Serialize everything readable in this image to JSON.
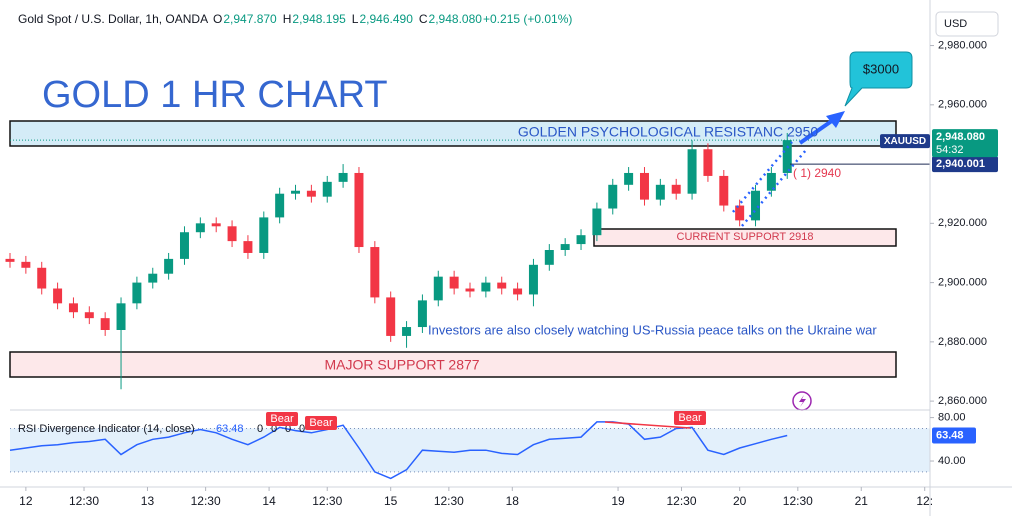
{
  "header": {
    "symbol": "Gold Spot / U.S. Dollar, 1h, OANDA",
    "ohlc": [
      {
        "key": "O",
        "value": "2,947.870"
      },
      {
        "key": "H",
        "value": "2,948.195"
      },
      {
        "key": "L",
        "value": "2,946.490"
      },
      {
        "key": "C",
        "value": "2,948.080"
      }
    ],
    "change": "+0.215 (+0.01%)"
  },
  "chart_data": [
    {
      "type": "candlestick",
      "title": "GOLD 1 HR CHART",
      "x": [
        0,
        3,
        6,
        9,
        12,
        15,
        18,
        21,
        24,
        27,
        30,
        33,
        36,
        39,
        42,
        45,
        48,
        51,
        54,
        57,
        60,
        63,
        66,
        69,
        72,
        75,
        78,
        81,
        84,
        87,
        90,
        93,
        96,
        99,
        102,
        105,
        108,
        111,
        114,
        117,
        120,
        123,
        126,
        129,
        132,
        135,
        138,
        141,
        144,
        147
      ],
      "open": [
        2908,
        2907,
        2905,
        2898,
        2893,
        2890,
        2888,
        2884,
        2893,
        2900,
        2903,
        2908,
        2917,
        2920,
        2919,
        2914,
        2910,
        2922,
        2930,
        2931,
        2929,
        2934,
        2937,
        2912,
        2895,
        2882,
        2885,
        2894,
        2902,
        2898,
        2897,
        2900,
        2898,
        2896,
        2906,
        2911,
        2913,
        2916,
        2925,
        2933,
        2937,
        2928,
        2933,
        2930,
        2945,
        2936,
        2926,
        2921,
        2931,
        2937
      ],
      "high": [
        2910,
        2909,
        2907,
        2900,
        2895,
        2892,
        2890,
        2895,
        2902,
        2905,
        2910,
        2919,
        2922,
        2922,
        2921,
        2916,
        2924,
        2932,
        2933,
        2933,
        2936,
        2940,
        2939,
        2914,
        2897,
        2887,
        2896,
        2904,
        2904,
        2900,
        2902,
        2902,
        2900,
        2908,
        2913,
        2915,
        2918,
        2927,
        2935,
        2939,
        2939,
        2935,
        2935,
        2948,
        2947,
        2938,
        2928,
        2933,
        2939,
        2950.5
      ],
      "low": [
        2905,
        2903,
        2896,
        2891,
        2888,
        2886,
        2882,
        2864,
        2891,
        2898,
        2901,
        2906,
        2915,
        2917,
        2912,
        2908,
        2908,
        2920,
        2928,
        2927,
        2927,
        2932,
        2910,
        2893,
        2880,
        2878,
        2883,
        2892,
        2896,
        2895,
        2895,
        2896,
        2894,
        2892,
        2904,
        2909,
        2911,
        2914,
        2923,
        2931,
        2926,
        2926,
        2928,
        2928,
        2934,
        2924,
        2919,
        2919,
        2929,
        2935
      ],
      "close": [
        2907,
        2905,
        2898,
        2893,
        2890,
        2888,
        2884,
        2893,
        2900,
        2903,
        2908,
        2917,
        2920,
        2919,
        2914,
        2910,
        2922,
        2930,
        2931,
        2929,
        2934,
        2937,
        2912,
        2895,
        2882,
        2885,
        2894,
        2902,
        2898,
        2897,
        2900,
        2898,
        2896,
        2906,
        2911,
        2913,
        2916,
        2925,
        2933,
        2937,
        2928,
        2933,
        2930,
        2945,
        2936,
        2926,
        2921,
        2931,
        2937,
        2948.08
      ],
      "up_color": "#089981",
      "down_color": "#f23645",
      "xlim": [
        0,
        174
      ],
      "xticks": [
        {
          "value": 3,
          "label": "12"
        },
        {
          "value": 14,
          "label": "12:30"
        },
        {
          "value": 26,
          "label": "13"
        },
        {
          "value": 37,
          "label": "12:30"
        },
        {
          "value": 49,
          "label": "14"
        },
        {
          "value": 60,
          "label": "12:30"
        },
        {
          "value": 72,
          "label": "15"
        },
        {
          "value": 83,
          "label": "12:30"
        },
        {
          "value": 95,
          "label": "18"
        },
        {
          "value": 115,
          "label": "19"
        },
        {
          "value": 127,
          "label": "12:30"
        },
        {
          "value": 138,
          "label": "20"
        },
        {
          "value": 149,
          "label": "12:30"
        },
        {
          "value": 161,
          "label": "21"
        },
        {
          "value": 173,
          "label": "12:"
        }
      ],
      "ylim": [
        2857,
        2992
      ],
      "yticks": [
        {
          "value": 2980,
          "label": "2,980.000"
        },
        {
          "value": 2960,
          "label": "2,960.000"
        },
        {
          "value": 2920,
          "label": "2,920.000"
        },
        {
          "value": 2900,
          "label": "2,900.000"
        },
        {
          "value": 2880,
          "label": "2,880.000"
        },
        {
          "value": 2860,
          "label": "2,860.000"
        }
      ],
      "currency": "USD",
      "last_price": {
        "symbol": "XAUUSD",
        "value": 2948.08,
        "label": "2,948.080",
        "countdown": "54:32"
      },
      "level_line": {
        "value": 2940.001,
        "label": "2,940.001"
      },
      "annotations": {
        "resistance": "GOLDEN PSYCHOLOGICAL RESISTANC 2950",
        "current_support": "CURRENT SUPPORT 2918",
        "major_support": "MAJOR SUPPORT 2877",
        "news": "Investors are also closely watching US-Russia peace talks on the Ukraine war",
        "level_note": "( 1) 2940",
        "target": "$3000"
      }
    },
    {
      "type": "line",
      "title": "RSI Divergence Indicator (14, close)",
      "color": "#2962ff",
      "x": [
        0,
        3,
        6,
        9,
        12,
        15,
        18,
        21,
        24,
        27,
        30,
        33,
        36,
        39,
        42,
        45,
        48,
        51,
        54,
        57,
        60,
        63,
        66,
        69,
        72,
        75,
        78,
        81,
        84,
        87,
        90,
        93,
        96,
        99,
        102,
        105,
        108,
        111,
        114,
        117,
        120,
        123,
        126,
        129,
        132,
        135,
        138,
        141,
        144,
        147
      ],
      "values": [
        50,
        52,
        54,
        55,
        57,
        58,
        60,
        46,
        55,
        60,
        62,
        66,
        69,
        66,
        60,
        55,
        62,
        71,
        68,
        66,
        69,
        73,
        52,
        30,
        24,
        32,
        50,
        49,
        48,
        50,
        50,
        47,
        46,
        55,
        60,
        61,
        62,
        76,
        76,
        74,
        60,
        62,
        70,
        71,
        50,
        46,
        52,
        56,
        60,
        63.48
      ],
      "last": {
        "value": 63.48,
        "label": "63.48"
      },
      "extra_values": [
        "0",
        "0",
        "0",
        "0"
      ],
      "signals": [
        "Bear",
        "Bear",
        "Bear"
      ],
      "band": [
        30,
        70
      ],
      "xlim": [
        0,
        174
      ],
      "ylim": [
        17,
        87
      ],
      "yticks": [
        {
          "value": 80,
          "label": "80.00"
        },
        {
          "value": 40,
          "label": "40.00"
        }
      ]
    }
  ]
}
